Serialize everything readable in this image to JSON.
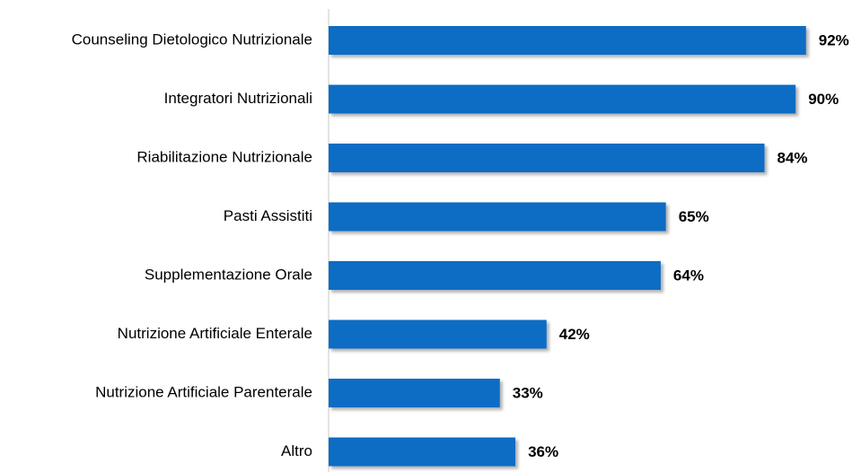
{
  "chart_data": {
    "type": "bar",
    "orientation": "horizontal",
    "categories": [
      "Counseling Dietologico Nutrizionale",
      "Integratori Nutrizionali",
      "Riabilitazione Nutrizionale",
      "Pasti Assistiti",
      "Supplementazione Orale",
      "Nutrizione Artificiale Enterale",
      "Nutrizione Artificiale Parenterale",
      "Altro"
    ],
    "values": [
      92,
      90,
      84,
      65,
      64,
      42,
      33,
      36
    ],
    "value_labels": [
      "92%",
      "90%",
      "84%",
      "65%",
      "64%",
      "42%",
      "33%",
      "36%"
    ],
    "color": "#0a6cc4",
    "xlim": [
      0,
      100
    ]
  }
}
